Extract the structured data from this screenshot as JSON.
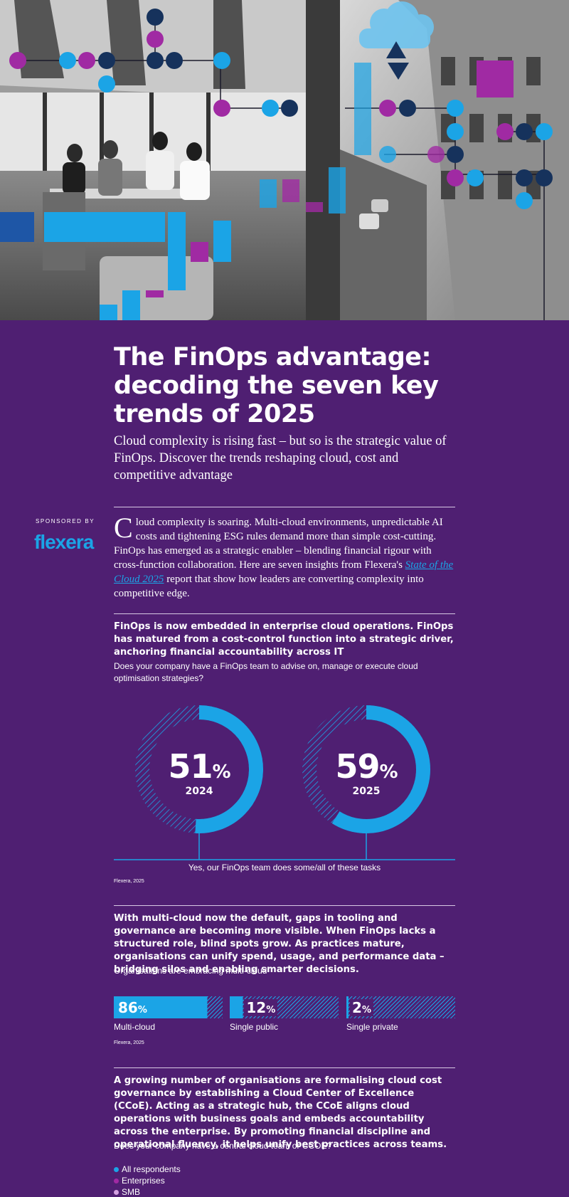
{
  "title": "The FinOps advantage: decoding the seven key trends of 2025",
  "subtitle": "Cloud complexity is rising fast – but so is the strategic value of FinOps. Discover the trends reshaping cloud, cost and competitive advantage",
  "sponsor": {
    "label": "SPONSORED BY",
    "logo": "flexera"
  },
  "intro": {
    "dropcap": "C",
    "before_link": "loud complexity is soaring. Multi-cloud environments, unpredictable AI costs and tightening ESG rules demand more than simple cost-cutting. FinOps has emerged as a strategic enabler – blending financial rigour with cross-function collaboration. Here are seven insights from Flexera's ",
    "link": "State of the Cloud 2025",
    "after_link": " report that show how leaders are converting complexity into competitive edge."
  },
  "section1": {
    "heading": "FinOps is now embedded in enterprise cloud operations. FinOps has matured from a cost-control function into a strategic driver, anchoring financial accountability across IT",
    "question": "Does your company have a FinOps team to advise on, manage or execute cloud optimisation strategies?",
    "answer_label": "Yes, our FinOps team does some/all of these tasks",
    "source": "Flexera, 2025"
  },
  "section2": {
    "heading": "With multi-cloud now the default, gaps in tooling and governance are becoming more visible. When FinOps lacks a structured role, blind spots grow. As practices mature, organisations can unify spend, usage, and performance data – bridging silos and enabling smarter decisions.",
    "question": "Organisations are embracing multi-cloud",
    "source": "Flexera, 2025"
  },
  "section3": {
    "heading": "A growing number of organisations are formalising cloud cost governance by establishing a Cloud Center of Excellence (CCoE). Acting as a strategic hub, the CCoE aligns cloud operations with business goals and embeds accountability across the enterprise. By promoting financial discipline and operational fluency, it helps unify best practices across teams.",
    "question": "Does your company have a central cloud team or CCOE?",
    "legend": [
      {
        "label": "All respondents",
        "color": "#1ba4e6"
      },
      {
        "label": "Enterprises",
        "color": "#a02aa3"
      },
      {
        "label": "SMB",
        "color": "#d3a0e0"
      }
    ]
  },
  "chart_data": [
    {
      "type": "donut",
      "title": "Does your company have a FinOps team to advise on, manage or execute cloud optimisation strategies?",
      "categories": [
        "2024",
        "2025"
      ],
      "values": [
        51,
        59
      ],
      "unit": "%",
      "label": "Yes, our FinOps team does some/all of these tasks"
    },
    {
      "type": "bar",
      "title": "Organisations are embracing multi-cloud",
      "categories": [
        "Multi-cloud",
        "Single public",
        "Single private"
      ],
      "values": [
        86,
        12,
        2
      ],
      "unit": "%"
    }
  ],
  "colors": {
    "background": "#4f1f72",
    "blue": "#1ba4e6",
    "magenta": "#a02aa3",
    "navy": "#16325c"
  }
}
